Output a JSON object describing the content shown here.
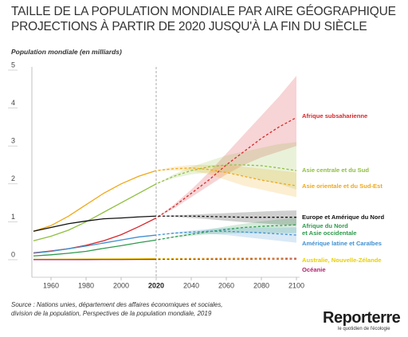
{
  "chart_data": {
    "type": "line",
    "title": "TAILLE DE LA POPULATION MONDIALE PAR AIRE GÉOGRAPHIQUE",
    "subtitle": "PROJECTIONS À PARTIR DE 2020 JUSQU'À LA FIN DU SIÈCLE",
    "y_label": "Population mondiale (en milliards)",
    "x": [
      1950,
      1960,
      1970,
      1980,
      1990,
      2000,
      2010,
      2020,
      2030,
      2040,
      2050,
      2060,
      2070,
      2080,
      2090,
      2100
    ],
    "xlim": [
      1950,
      2100
    ],
    "xticks": [
      1960,
      1980,
      2000,
      2020,
      2040,
      2060,
      2080,
      2100
    ],
    "ylim": [
      0,
      5
    ],
    "yticks": [
      0,
      1,
      2,
      3,
      4,
      5
    ],
    "projection_start": 2020,
    "series": [
      {
        "name": "Afrique subsaharienne",
        "color": "#d7262b",
        "values": [
          0.18,
          0.23,
          0.29,
          0.38,
          0.5,
          0.66,
          0.87,
          1.1,
          1.4,
          1.75,
          2.1,
          2.5,
          2.85,
          3.2,
          3.5,
          3.75
        ],
        "lower": [
          null,
          null,
          null,
          null,
          null,
          null,
          null,
          1.1,
          1.35,
          1.65,
          1.95,
          2.25,
          2.5,
          2.7,
          2.85,
          3.0
        ],
        "upper": [
          null,
          null,
          null,
          null,
          null,
          null,
          null,
          1.1,
          1.45,
          1.85,
          2.3,
          2.8,
          3.3,
          3.8,
          4.3,
          4.85
        ]
      },
      {
        "name": "Asie centrale et du Sud",
        "color": "#8fbf3f",
        "values": [
          0.5,
          0.62,
          0.78,
          1.0,
          1.25,
          1.5,
          1.75,
          2.0,
          2.2,
          2.35,
          2.45,
          2.5,
          2.5,
          2.48,
          2.42,
          2.35
        ],
        "lower": [
          null,
          null,
          null,
          null,
          null,
          null,
          null,
          2.0,
          2.15,
          2.25,
          2.3,
          2.3,
          2.2,
          2.1,
          2.0,
          1.85
        ],
        "upper": [
          null,
          null,
          null,
          null,
          null,
          null,
          null,
          2.0,
          2.25,
          2.45,
          2.6,
          2.75,
          2.85,
          2.95,
          3.05,
          3.1
        ]
      },
      {
        "name": "Asie orientale et du Sud-Est",
        "color": "#f0a818",
        "values": [
          0.75,
          0.9,
          1.15,
          1.45,
          1.75,
          2.0,
          2.2,
          2.35,
          2.4,
          2.42,
          2.38,
          2.3,
          2.2,
          2.1,
          2.02,
          1.95
        ],
        "lower": [
          null,
          null,
          null,
          null,
          null,
          null,
          null,
          2.35,
          2.35,
          2.35,
          2.25,
          2.1,
          1.95,
          1.85,
          1.75,
          1.65
        ],
        "upper": [
          null,
          null,
          null,
          null,
          null,
          null,
          null,
          2.35,
          2.45,
          2.5,
          2.5,
          2.5,
          2.45,
          2.4,
          2.35,
          2.3
        ]
      },
      {
        "name": "Europe et Amérique du Nord",
        "color": "#111111",
        "values": [
          0.75,
          0.85,
          0.95,
          1.02,
          1.08,
          1.1,
          1.13,
          1.15,
          1.15,
          1.15,
          1.14,
          1.13,
          1.12,
          1.12,
          1.12,
          1.12
        ],
        "lower": [
          null,
          null,
          null,
          null,
          null,
          null,
          null,
          1.15,
          1.13,
          1.1,
          1.07,
          1.03,
          0.99,
          0.96,
          0.93,
          0.9
        ],
        "upper": [
          null,
          null,
          null,
          null,
          null,
          null,
          null,
          1.15,
          1.17,
          1.19,
          1.21,
          1.23,
          1.25,
          1.27,
          1.29,
          1.3
        ]
      },
      {
        "name": "Afrique du Nord\net Asie occidentale",
        "color": "#2e9a4c",
        "values": [
          0.1,
          0.13,
          0.17,
          0.22,
          0.3,
          0.37,
          0.45,
          0.52,
          0.6,
          0.67,
          0.74,
          0.8,
          0.85,
          0.88,
          0.9,
          0.92
        ],
        "lower": [
          null,
          null,
          null,
          null,
          null,
          null,
          null,
          0.52,
          0.58,
          0.63,
          0.67,
          0.69,
          0.7,
          0.7,
          0.7,
          0.7
        ],
        "upper": [
          null,
          null,
          null,
          null,
          null,
          null,
          null,
          0.52,
          0.62,
          0.71,
          0.8,
          0.88,
          0.95,
          1.01,
          1.06,
          1.1
        ]
      },
      {
        "name": "Amérique latine et Caraïbes",
        "color": "#3f8fd0",
        "values": [
          0.17,
          0.22,
          0.29,
          0.36,
          0.44,
          0.52,
          0.6,
          0.65,
          0.7,
          0.73,
          0.75,
          0.75,
          0.73,
          0.71,
          0.68,
          0.65
        ],
        "lower": [
          null,
          null,
          null,
          null,
          null,
          null,
          null,
          0.65,
          0.68,
          0.69,
          0.68,
          0.65,
          0.6,
          0.55,
          0.5,
          0.45
        ],
        "upper": [
          null,
          null,
          null,
          null,
          null,
          null,
          null,
          0.65,
          0.72,
          0.77,
          0.81,
          0.84,
          0.85,
          0.85,
          0.85,
          0.85
        ]
      },
      {
        "name": "Australie, Nouvelle-Zélande",
        "color": "#e8d000",
        "values": [
          0.01,
          0.012,
          0.015,
          0.017,
          0.02,
          0.022,
          0.026,
          0.03,
          0.033,
          0.036,
          0.039,
          0.042,
          0.044,
          0.046,
          0.048,
          0.05
        ]
      },
      {
        "name": "Océanie",
        "color": "#b0226e",
        "values": [
          0.002,
          0.003,
          0.003,
          0.004,
          0.005,
          0.006,
          0.008,
          0.009,
          0.011,
          0.012,
          0.014,
          0.015,
          0.017,
          0.018,
          0.019,
          0.02
        ]
      }
    ],
    "source": "Source : Nations unies, département des affaires économiques et sociales,\ndivision de la population, Perspectives de la population mondiale, 2019",
    "logo": {
      "name": "Reporterre",
      "tagline": "le quotidien de l'écologie"
    }
  }
}
